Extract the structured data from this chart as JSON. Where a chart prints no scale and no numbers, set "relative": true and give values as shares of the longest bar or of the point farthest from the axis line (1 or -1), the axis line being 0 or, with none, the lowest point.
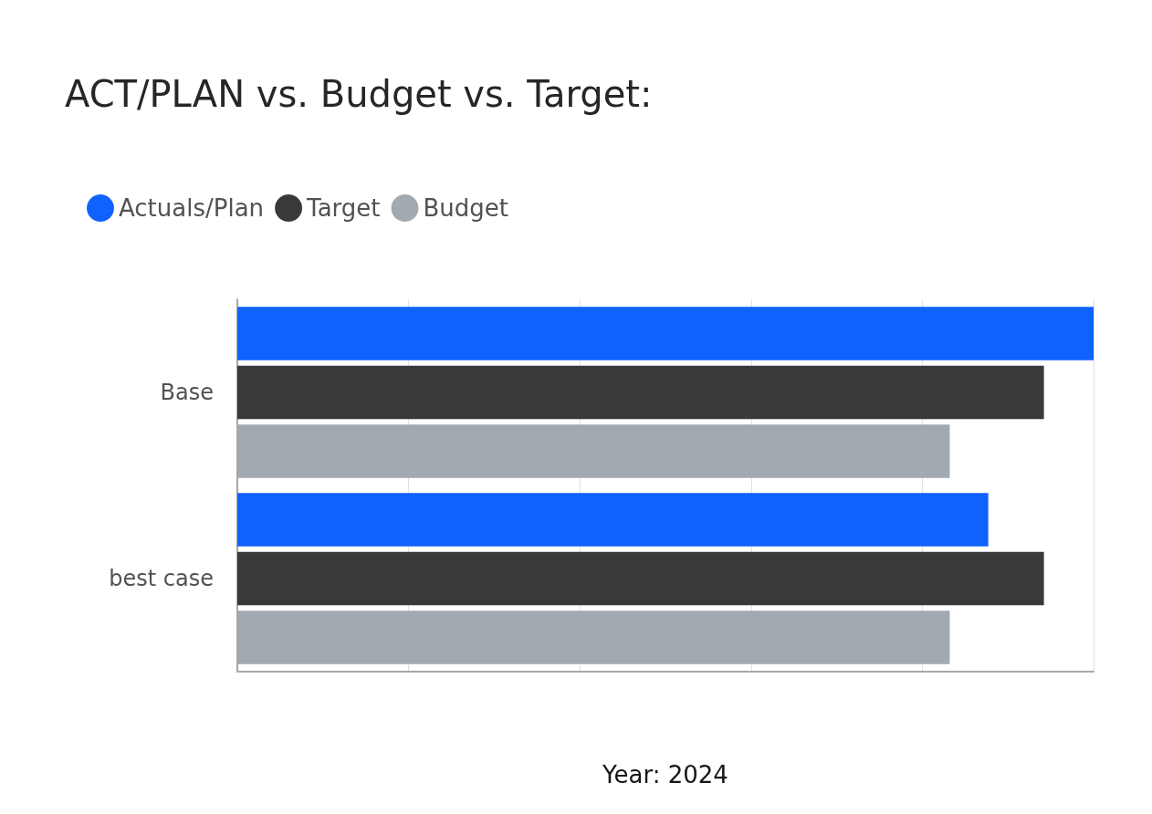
{
  "chart_data": {
    "type": "bar",
    "orientation": "horizontal",
    "relative": true,
    "title": "ACT/PLAN vs. Budget vs. Target:",
    "xlabel": "Year: 2024",
    "categories": [
      "Base",
      "best case"
    ],
    "series": [
      {
        "name": "Actuals/Plan",
        "color": "#0f62fe",
        "values": [
          1,
          0.877
        ]
      },
      {
        "name": "Target",
        "color": "#393939",
        "values": [
          0.942,
          0.942
        ]
      },
      {
        "name": "Budget",
        "color": "#a2a9b0",
        "values": [
          0.832,
          0.832
        ]
      }
    ],
    "grid": "x",
    "legend": "top left"
  }
}
